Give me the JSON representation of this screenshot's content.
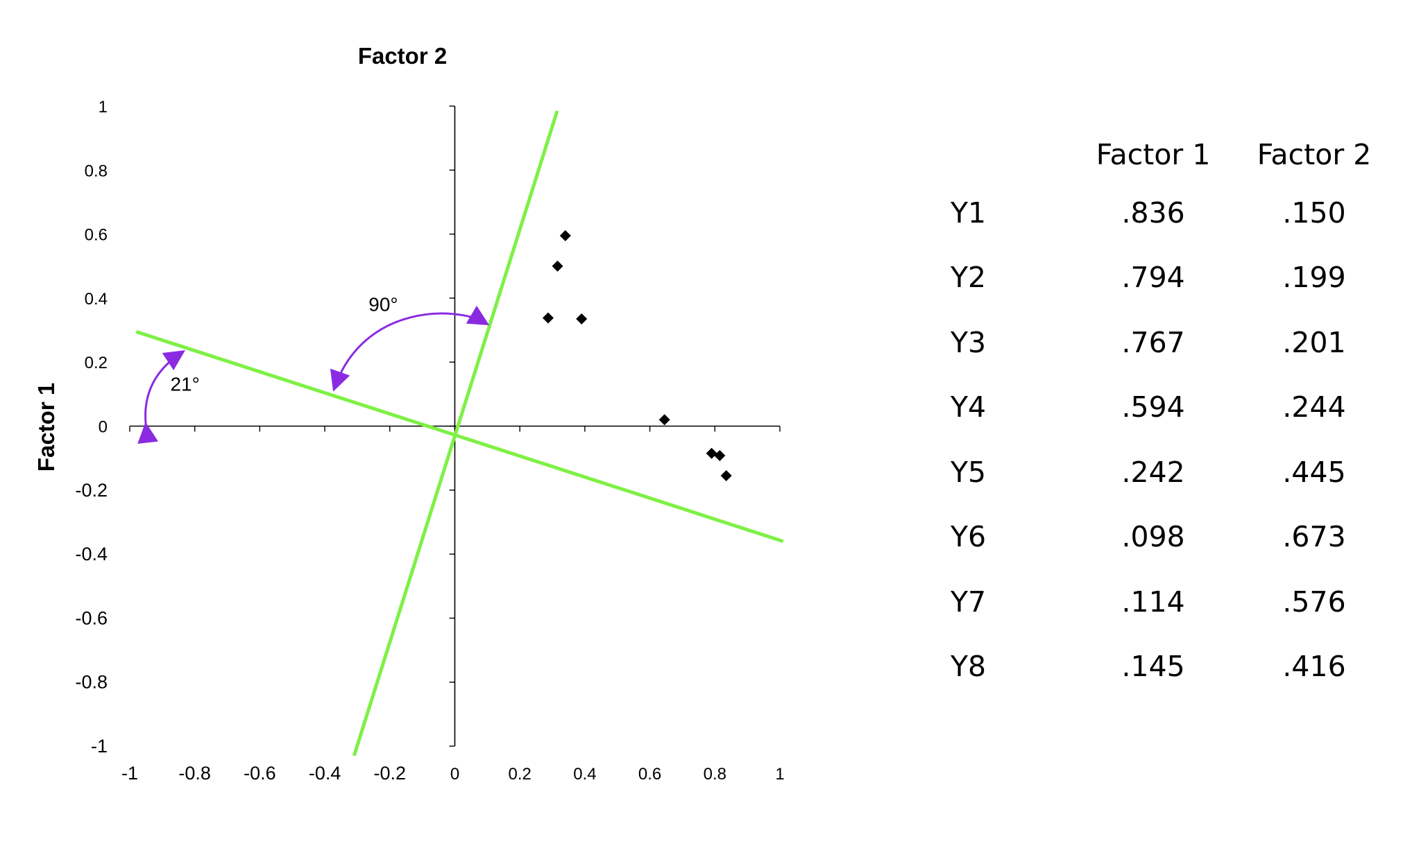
{
  "chart_data": {
    "type": "scatter",
    "title": "Factor 2",
    "xlabel": "",
    "ylabel": "Factor 1",
    "xlim": [
      -1,
      1
    ],
    "ylim": [
      -1,
      1
    ],
    "x_ticks": [
      "-1",
      "-0.8",
      "-0.6",
      "-0.4",
      "-0.2",
      "0",
      "0.2",
      "0.4",
      "0.6",
      "0.8",
      "1"
    ],
    "x_tick_values": [
      -1,
      -0.8,
      -0.6,
      -0.4,
      -0.2,
      0,
      0.2,
      0.4,
      0.6,
      0.8,
      1
    ],
    "y_ticks": [
      "1",
      "0.8",
      "0.6",
      "0.4",
      "0.2",
      "0",
      "-0.2",
      "-0.4",
      "-0.6",
      "-0.8",
      "-1"
    ],
    "y_tick_values": [
      1,
      0.8,
      0.6,
      0.4,
      0.2,
      0,
      -0.2,
      -0.4,
      -0.6,
      -0.8,
      -1
    ],
    "grid": false,
    "points": [
      {
        "x": 0.34,
        "y": 0.595
      },
      {
        "x": 0.316,
        "y": 0.5
      },
      {
        "x": 0.287,
        "y": 0.338
      },
      {
        "x": 0.39,
        "y": 0.335
      },
      {
        "x": 0.645,
        "y": 0.02
      },
      {
        "x": 0.79,
        "y": -0.085
      },
      {
        "x": 0.815,
        "y": -0.092
      },
      {
        "x": 0.835,
        "y": -0.155
      }
    ],
    "rotated_axes": [
      {
        "x1": -0.98,
        "y1": 0.295,
        "x2": 1.01,
        "y2": -0.36
      },
      {
        "x1": -0.31,
        "y1": -1.03,
        "x2": 0.315,
        "y2": 0.985
      }
    ],
    "annotations": [
      {
        "text": "90°",
        "x": -0.22,
        "y": 0.36
      },
      {
        "text": "21°",
        "x": -0.83,
        "y": 0.11
      }
    ],
    "line_color": "#7EF045",
    "arrow_color": "#8A2BE2",
    "marker_color": "#000000"
  },
  "table": {
    "headers": [
      "",
      "Factor 1",
      "Factor 2"
    ],
    "rows": [
      {
        "label": "Y1",
        "f1": ".836",
        "f2": ".150"
      },
      {
        "label": "Y2",
        "f1": ".794",
        "f2": ".199"
      },
      {
        "label": "Y3",
        "f1": ".767",
        "f2": ".201"
      },
      {
        "label": "Y4",
        "f1": ".594",
        "f2": ".244"
      },
      {
        "label": "Y5",
        "f1": ".242",
        "f2": ".445"
      },
      {
        "label": "Y6",
        "f1": ".098",
        "f2": ".673"
      },
      {
        "label": "Y7",
        "f1": ".114",
        "f2": ".576"
      },
      {
        "label": "Y8",
        "f1": ".145",
        "f2": ".416"
      }
    ]
  }
}
